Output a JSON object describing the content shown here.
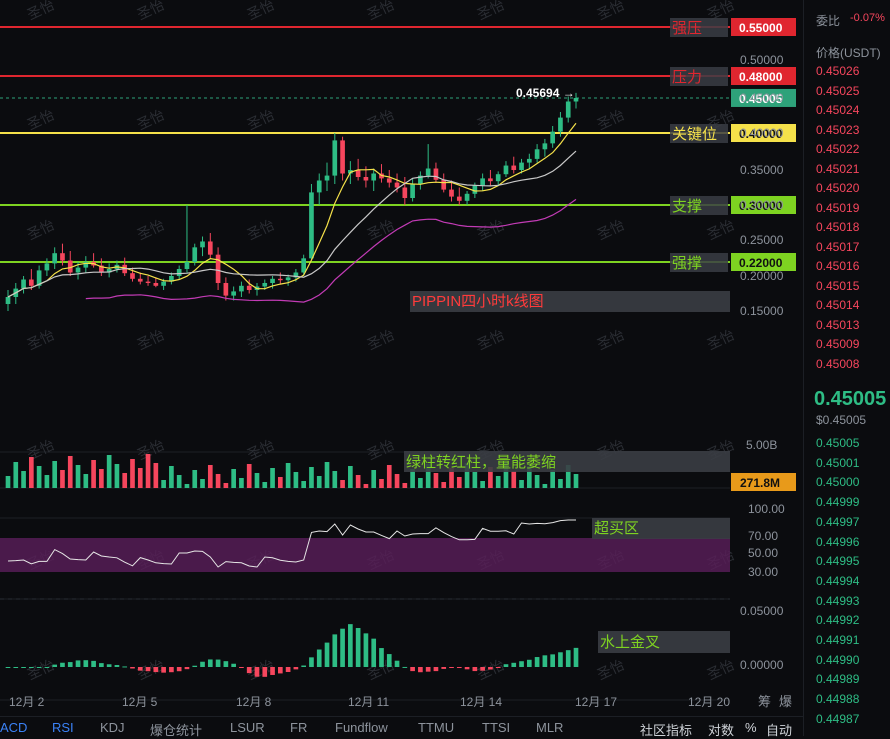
{
  "chart_data": {
    "type": "candlestick",
    "title": "PIPPIN四小时k线图",
    "x_ticks": [
      "12月 2",
      "12月 5",
      "12月 8",
      "12月 11",
      "12月 14",
      "12月 17",
      "12月 20"
    ],
    "y_ticks": [
      "0.50000",
      "0.45000",
      "0.40000",
      "0.35000",
      "0.30000",
      "0.25000",
      "0.20000",
      "0.15000"
    ],
    "price_marker": "0.45694",
    "current_price_label": "0.45005",
    "levels": [
      {
        "name": "强压",
        "price": "0.55000",
        "color": "#e0262f"
      },
      {
        "name": "压力",
        "price": "0.48000",
        "color": "#e0262f"
      },
      {
        "name": "关键位",
        "price": "0.40000",
        "color": "#f5e14a"
      },
      {
        "name": "支撑",
        "price": "0.30000",
        "color": "#7ed321"
      },
      {
        "name": "强撑",
        "price": "0.22000",
        "color": "#7ed321"
      }
    ],
    "volume": {
      "axis_label": "5.00B",
      "current": "271.8M",
      "annotation": "绿柱转红柱，量能萎缩"
    },
    "rsi": {
      "ticks": [
        "100.00",
        "70.00",
        "50.00",
        "30.00"
      ],
      "annotation": "超买区"
    },
    "macd": {
      "ticks": [
        "0.05000",
        "0.00000"
      ],
      "annotation": "水上金叉"
    },
    "candles": [
      [
        0.16,
        0.18,
        0.15,
        0.17
      ],
      [
        0.17,
        0.19,
        0.16,
        0.182
      ],
      [
        0.182,
        0.2,
        0.175,
        0.195
      ],
      [
        0.195,
        0.21,
        0.18,
        0.186
      ],
      [
        0.186,
        0.215,
        0.182,
        0.208
      ],
      [
        0.208,
        0.225,
        0.2,
        0.218
      ],
      [
        0.218,
        0.24,
        0.21,
        0.232
      ],
      [
        0.232,
        0.245,
        0.215,
        0.222
      ],
      [
        0.222,
        0.235,
        0.2,
        0.205
      ],
      [
        0.205,
        0.22,
        0.195,
        0.212
      ],
      [
        0.212,
        0.228,
        0.205,
        0.22
      ],
      [
        0.22,
        0.232,
        0.212,
        0.215
      ],
      [
        0.215,
        0.225,
        0.2,
        0.205
      ],
      [
        0.205,
        0.218,
        0.198,
        0.21
      ],
      [
        0.21,
        0.222,
        0.205,
        0.216
      ],
      [
        0.216,
        0.226,
        0.2,
        0.204
      ],
      [
        0.204,
        0.212,
        0.192,
        0.196
      ],
      [
        0.196,
        0.205,
        0.188,
        0.192
      ],
      [
        0.192,
        0.2,
        0.186,
        0.19
      ],
      [
        0.19,
        0.198,
        0.184,
        0.186
      ],
      [
        0.186,
        0.196,
        0.18,
        0.192
      ],
      [
        0.192,
        0.205,
        0.188,
        0.2
      ],
      [
        0.2,
        0.215,
        0.195,
        0.21
      ],
      [
        0.21,
        0.3,
        0.205,
        0.22
      ],
      [
        0.22,
        0.245,
        0.215,
        0.24
      ],
      [
        0.24,
        0.255,
        0.228,
        0.248
      ],
      [
        0.248,
        0.26,
        0.225,
        0.23
      ],
      [
        0.23,
        0.24,
        0.18,
        0.19
      ],
      [
        0.19,
        0.198,
        0.165,
        0.172
      ],
      [
        0.172,
        0.185,
        0.165,
        0.178
      ],
      [
        0.178,
        0.192,
        0.17,
        0.186
      ],
      [
        0.186,
        0.195,
        0.175,
        0.18
      ],
      [
        0.18,
        0.19,
        0.172,
        0.185
      ],
      [
        0.185,
        0.195,
        0.18,
        0.19
      ],
      [
        0.19,
        0.2,
        0.182,
        0.196
      ],
      [
        0.196,
        0.205,
        0.188,
        0.194
      ],
      [
        0.194,
        0.202,
        0.186,
        0.198
      ],
      [
        0.198,
        0.21,
        0.192,
        0.205
      ],
      [
        0.205,
        0.23,
        0.2,
        0.225
      ],
      [
        0.225,
        0.33,
        0.222,
        0.318
      ],
      [
        0.318,
        0.345,
        0.3,
        0.335
      ],
      [
        0.335,
        0.36,
        0.32,
        0.342
      ],
      [
        0.342,
        0.4,
        0.33,
        0.39
      ],
      [
        0.39,
        0.395,
        0.335,
        0.345
      ],
      [
        0.345,
        0.362,
        0.33,
        0.35
      ],
      [
        0.35,
        0.365,
        0.335,
        0.34
      ],
      [
        0.34,
        0.355,
        0.325,
        0.335
      ],
      [
        0.335,
        0.352,
        0.32,
        0.345
      ],
      [
        0.345,
        0.358,
        0.332,
        0.338
      ],
      [
        0.338,
        0.35,
        0.325,
        0.332
      ],
      [
        0.332,
        0.345,
        0.318,
        0.325
      ],
      [
        0.325,
        0.34,
        0.3,
        0.31
      ],
      [
        0.31,
        0.338,
        0.305,
        0.33
      ],
      [
        0.33,
        0.348,
        0.322,
        0.342
      ],
      [
        0.342,
        0.385,
        0.338,
        0.352
      ],
      [
        0.352,
        0.36,
        0.332,
        0.336
      ],
      [
        0.336,
        0.345,
        0.318,
        0.322
      ],
      [
        0.322,
        0.335,
        0.305,
        0.312
      ],
      [
        0.312,
        0.325,
        0.3,
        0.306
      ],
      [
        0.306,
        0.32,
        0.3,
        0.316
      ],
      [
        0.316,
        0.332,
        0.31,
        0.328
      ],
      [
        0.328,
        0.345,
        0.32,
        0.338
      ],
      [
        0.338,
        0.35,
        0.328,
        0.334
      ],
      [
        0.334,
        0.348,
        0.328,
        0.344
      ],
      [
        0.344,
        0.362,
        0.34,
        0.356
      ],
      [
        0.356,
        0.368,
        0.345,
        0.35
      ],
      [
        0.35,
        0.365,
        0.345,
        0.36
      ],
      [
        0.36,
        0.372,
        0.352,
        0.365
      ],
      [
        0.365,
        0.385,
        0.36,
        0.378
      ],
      [
        0.378,
        0.392,
        0.368,
        0.386
      ],
      [
        0.386,
        0.41,
        0.38,
        0.402
      ],
      [
        0.402,
        0.43,
        0.395,
        0.422
      ],
      [
        0.422,
        0.452,
        0.415,
        0.445
      ],
      [
        0.445,
        0.457,
        0.435,
        0.45
      ]
    ]
  },
  "levels_price_box_colors": {
    "red": "#e0262f",
    "yellow": "#f5e14a",
    "green": "#7ed321",
    "current": "#2ea27a",
    "volume": "#e89a1a"
  },
  "orderbook": {
    "header_label": "委比",
    "header_value": "-0.07%",
    "column_label": "价格(USDT)",
    "asks": [
      "0.45026",
      "0.45025",
      "0.45024",
      "0.45023",
      "0.45022",
      "0.45021",
      "0.45020",
      "0.45019",
      "0.45018",
      "0.45017",
      "0.45016",
      "0.45015",
      "0.45014",
      "0.45013",
      "0.45009",
      "0.45008"
    ],
    "last_price": "0.45005",
    "last_price_usd": "$0.45005",
    "bids": [
      "0.45005",
      "0.45001",
      "0.45000",
      "0.44999",
      "0.44997",
      "0.44996",
      "0.44995",
      "0.44994",
      "0.44993",
      "0.44992",
      "0.44991",
      "0.44990",
      "0.44989",
      "0.44988",
      "0.44987"
    ]
  },
  "bottombar": {
    "tabs": [
      "ACD",
      "RSI",
      "KDJ",
      "爆仓统计",
      "LSUR",
      "FR",
      "Fundflow",
      "TTMU",
      "TTSI",
      "MLR"
    ],
    "right_tabs": [
      "社区指标",
      "对数",
      "%",
      "自动"
    ],
    "corner_labels": [
      "筹",
      "爆"
    ]
  },
  "watermark": "圣怡"
}
